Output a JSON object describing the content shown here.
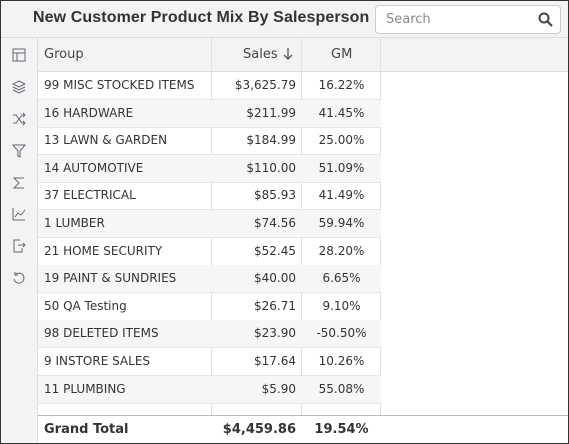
{
  "header": {
    "title": "New Customer Product Mix By Salesperson",
    "search_placeholder": "Search"
  },
  "table": {
    "columns": [
      "Group",
      "Sales",
      "GM"
    ],
    "rows": [
      [
        "99 MISC STOCKED ITEMS",
        "$3,625.79",
        "16.22%"
      ],
      [
        "16 HARDWARE",
        "$211.99",
        "41.45%"
      ],
      [
        "13 LAWN & GARDEN",
        "$184.99",
        "25.00%"
      ],
      [
        "14 AUTOMOTIVE",
        "$110.00",
        "51.09%"
      ],
      [
        "37 ELECTRICAL",
        "$85.93",
        "41.49%"
      ],
      [
        "1 LUMBER",
        "$74.56",
        "59.94%"
      ],
      [
        "21 HOME SECURITY",
        "$52.45",
        "28.20%"
      ],
      [
        "19 PAINT & SUNDRIES",
        "$40.00",
        "6.65%"
      ],
      [
        "50 QA Testing",
        "$26.71",
        "9.10%"
      ],
      [
        "98 DELETED ITEMS",
        "$23.90",
        "-50.50%"
      ],
      [
        "9 INSTORE SALES",
        "$17.64",
        "10.26%"
      ],
      [
        "11 PLUMBING",
        "$5.90",
        "55.08%"
      ]
    ],
    "total": [
      "Grand Total",
      "$4,459.86",
      "19.54%"
    ]
  }
}
